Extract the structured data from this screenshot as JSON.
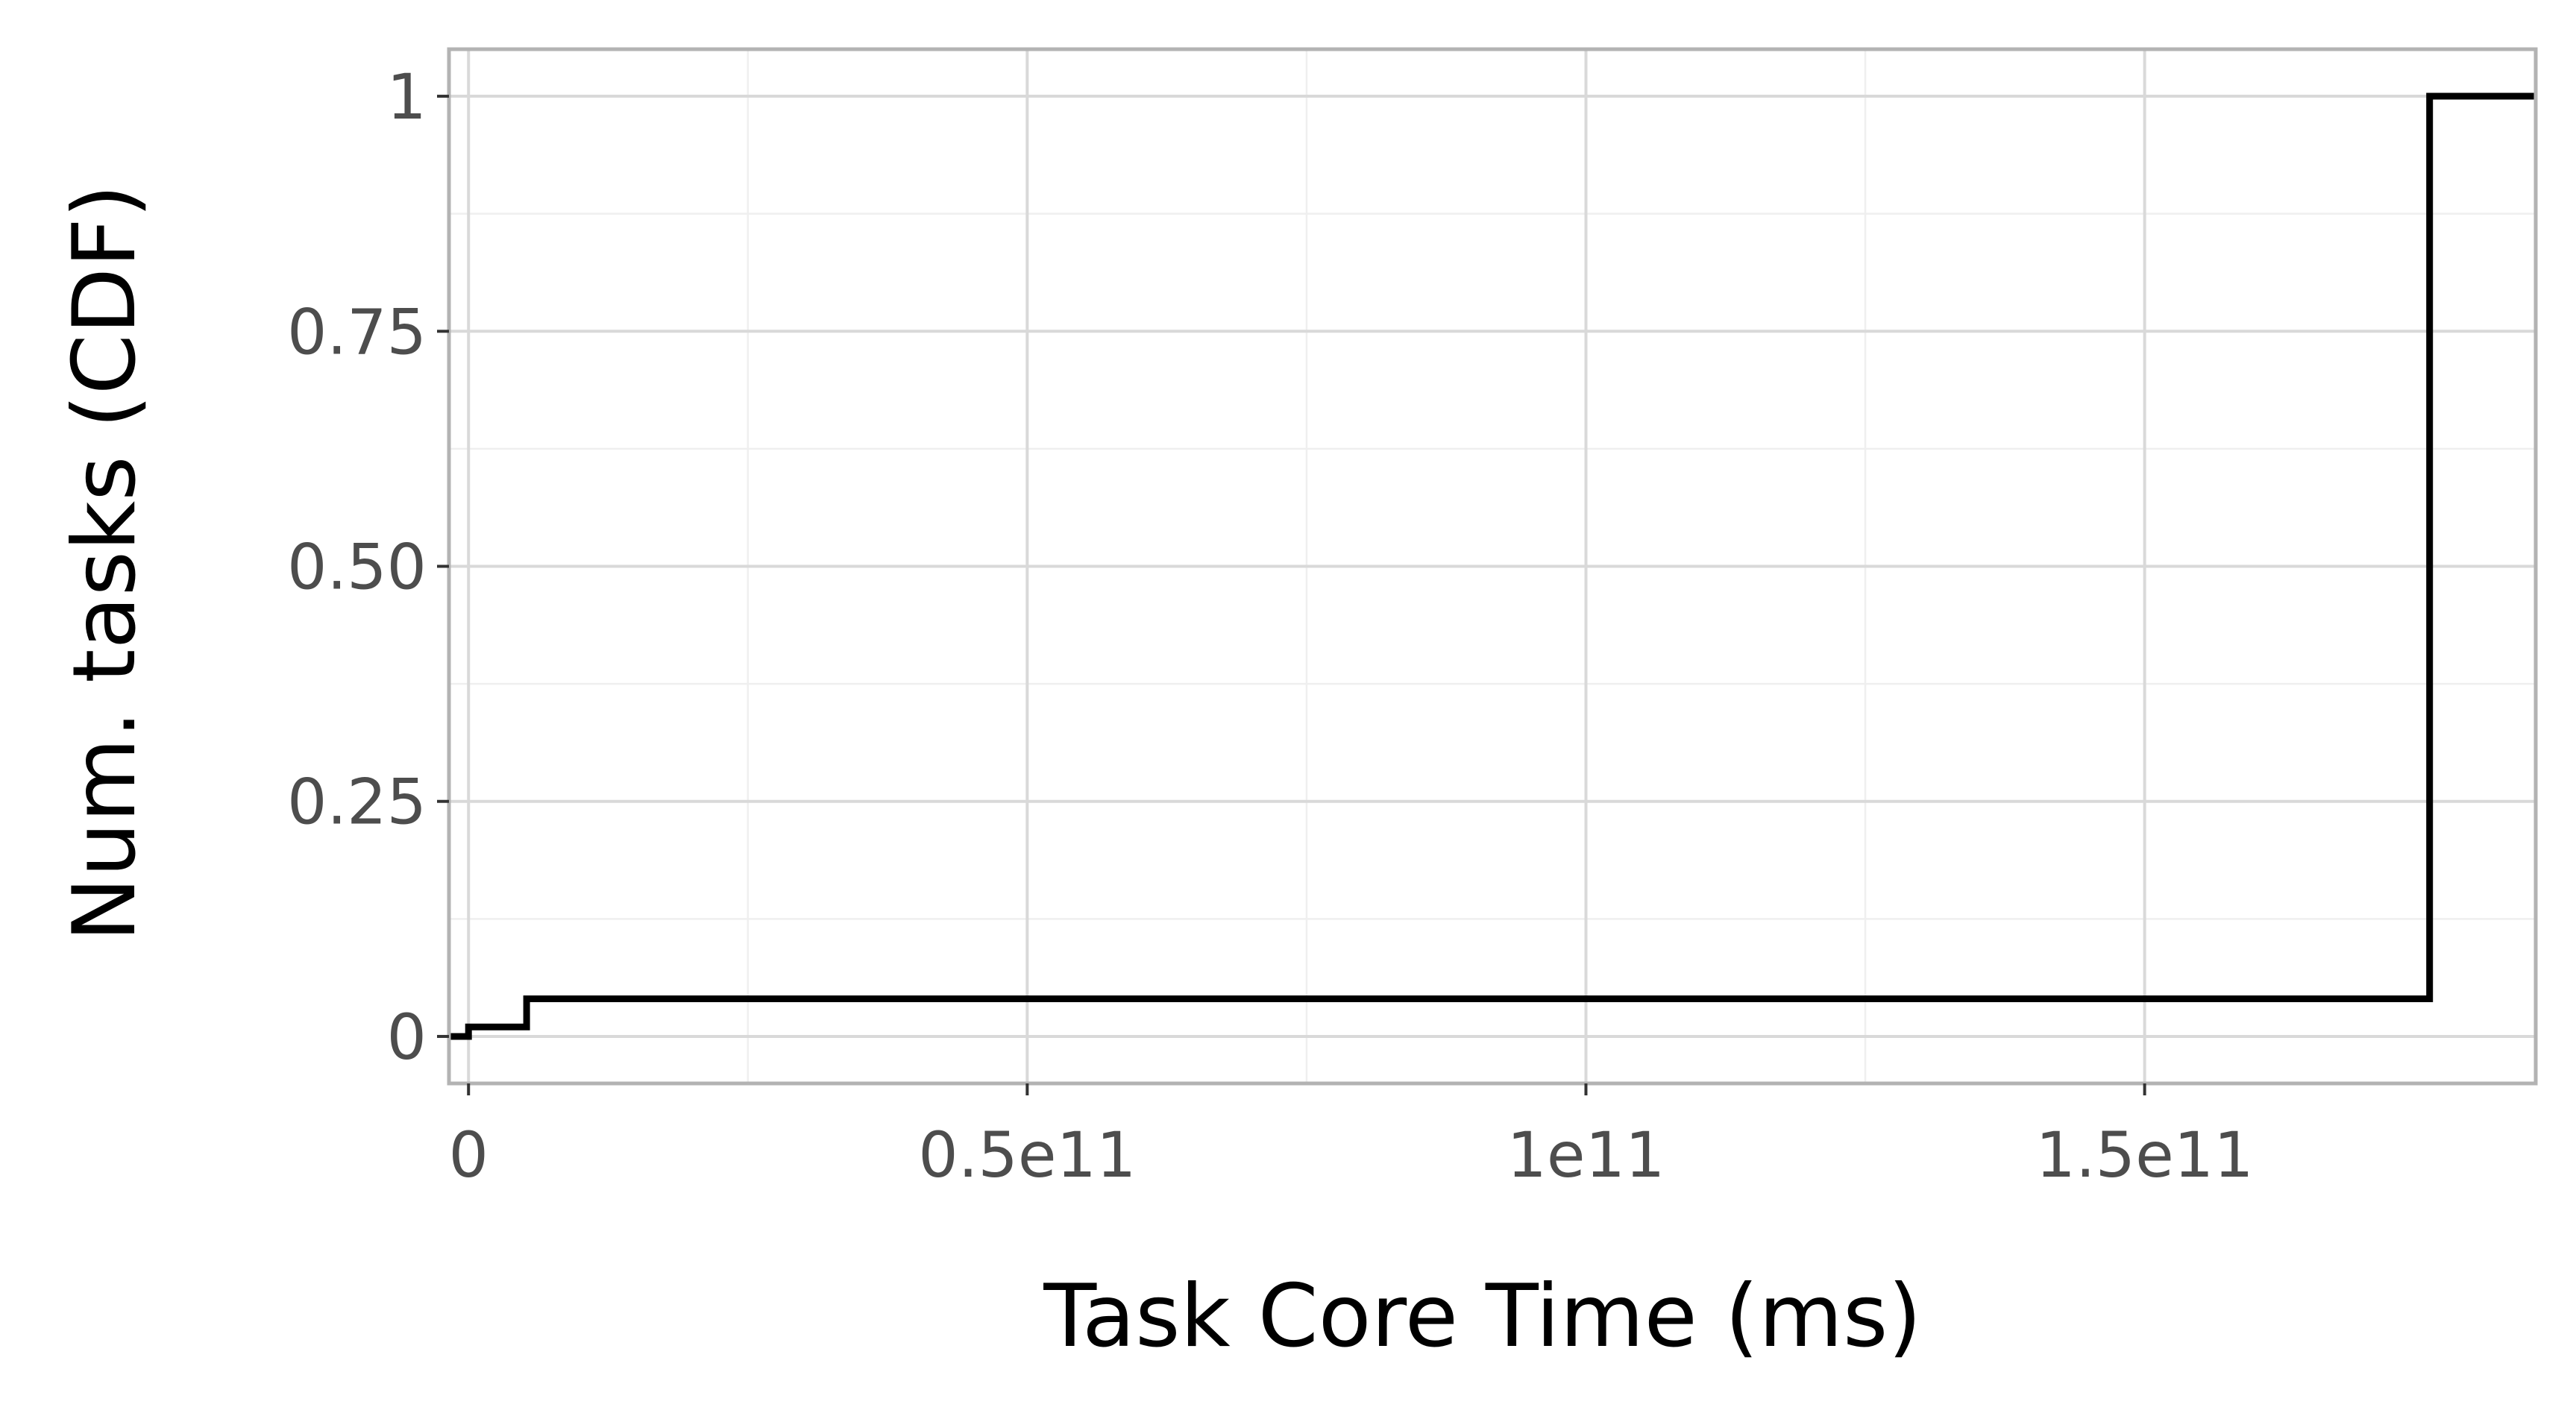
{
  "chart_data": {
    "type": "line",
    "step": true,
    "title": "",
    "xlabel": "Task Core Time (ms)",
    "ylabel": "Num. tasks (CDF)",
    "xlim": [
      -1750000000.0,
      185000000000.0
    ],
    "ylim": [
      -0.05,
      1.05
    ],
    "x_ticks": [
      {
        "value": 0,
        "label": "0"
      },
      {
        "value": 50000000000.0,
        "label": "0.5e11"
      },
      {
        "value": 100000000000.0,
        "label": "1e11"
      },
      {
        "value": 150000000000.0,
        "label": "1.5e11"
      }
    ],
    "y_ticks": [
      {
        "value": 0,
        "label": "0"
      },
      {
        "value": 0.25,
        "label": "0.25"
      },
      {
        "value": 0.5,
        "label": "0.50"
      },
      {
        "value": 0.75,
        "label": "0.75"
      },
      {
        "value": 1,
        "label": "1"
      }
    ],
    "series": [
      {
        "x": [
          -1750000000.0,
          0,
          0,
          5200000000.0,
          5200000000.0,
          175500000000.0,
          175500000000.0,
          185000000000.0
        ],
        "y": [
          0,
          0,
          0.01,
          0.01,
          0.04,
          0.04,
          1,
          1
        ]
      }
    ],
    "grid": true,
    "legend": "none",
    "colors": {
      "line": "#000000",
      "grid_major": "#d9d9d9",
      "grid_minor": "#efefef",
      "panel_border": "#b3b3b3",
      "tick_text": "#4d4d4d"
    }
  }
}
